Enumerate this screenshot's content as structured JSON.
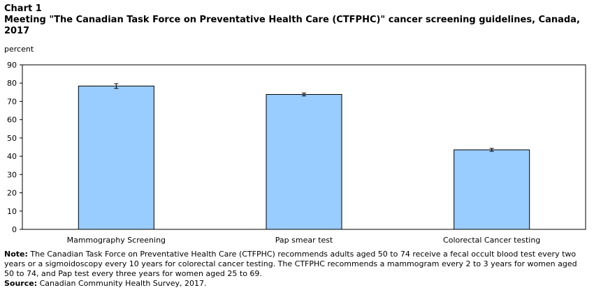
{
  "header": {
    "chart_label": "Chart 1",
    "title": "Meeting \"The Canadian Task Force on Preventative Health Care (CTFPHC)\" cancer screening guidelines, Canada, 2017"
  },
  "footer": {
    "note_label": "Note:",
    "note_text": "The Canadian Task Force on Preventative Health Care (CTFPHC) recommends adults aged 50 to 74 receive a fecal occult blood test every two years or a sigmoidoscopy every 10 years for colorectal cancer testing. The CTFPHC recommends a mammogram every 2 to 3 years for women aged 50 to 74, and Pap test every three years for women aged 25 to 69.",
    "source_label": "Source:",
    "source_text": "Canadian Community Health Survey, 2017."
  },
  "colors": {
    "bar_fill": "#99ccff",
    "bar_stroke": "#000000"
  },
  "chart_data": {
    "type": "bar",
    "title": "Meeting \"The Canadian Task Force on Preventative Health Care (CTFPHC)\" cancer screening guidelines, Canada, 2017",
    "ylabel": "percent",
    "xlabel": "",
    "ylim": [
      0,
      90
    ],
    "yticks": [
      0,
      10,
      20,
      30,
      40,
      50,
      60,
      70,
      80,
      90
    ],
    "categories": [
      "Mammography Screening",
      "Pap smear test",
      "Colorectal Cancer testing"
    ],
    "values": [
      78.4,
      73.8,
      43.5
    ],
    "error_low": [
      77.1,
      73.0,
      42.7
    ],
    "error_high": [
      79.7,
      74.6,
      44.3
    ],
    "grid": false,
    "legend": "none"
  }
}
